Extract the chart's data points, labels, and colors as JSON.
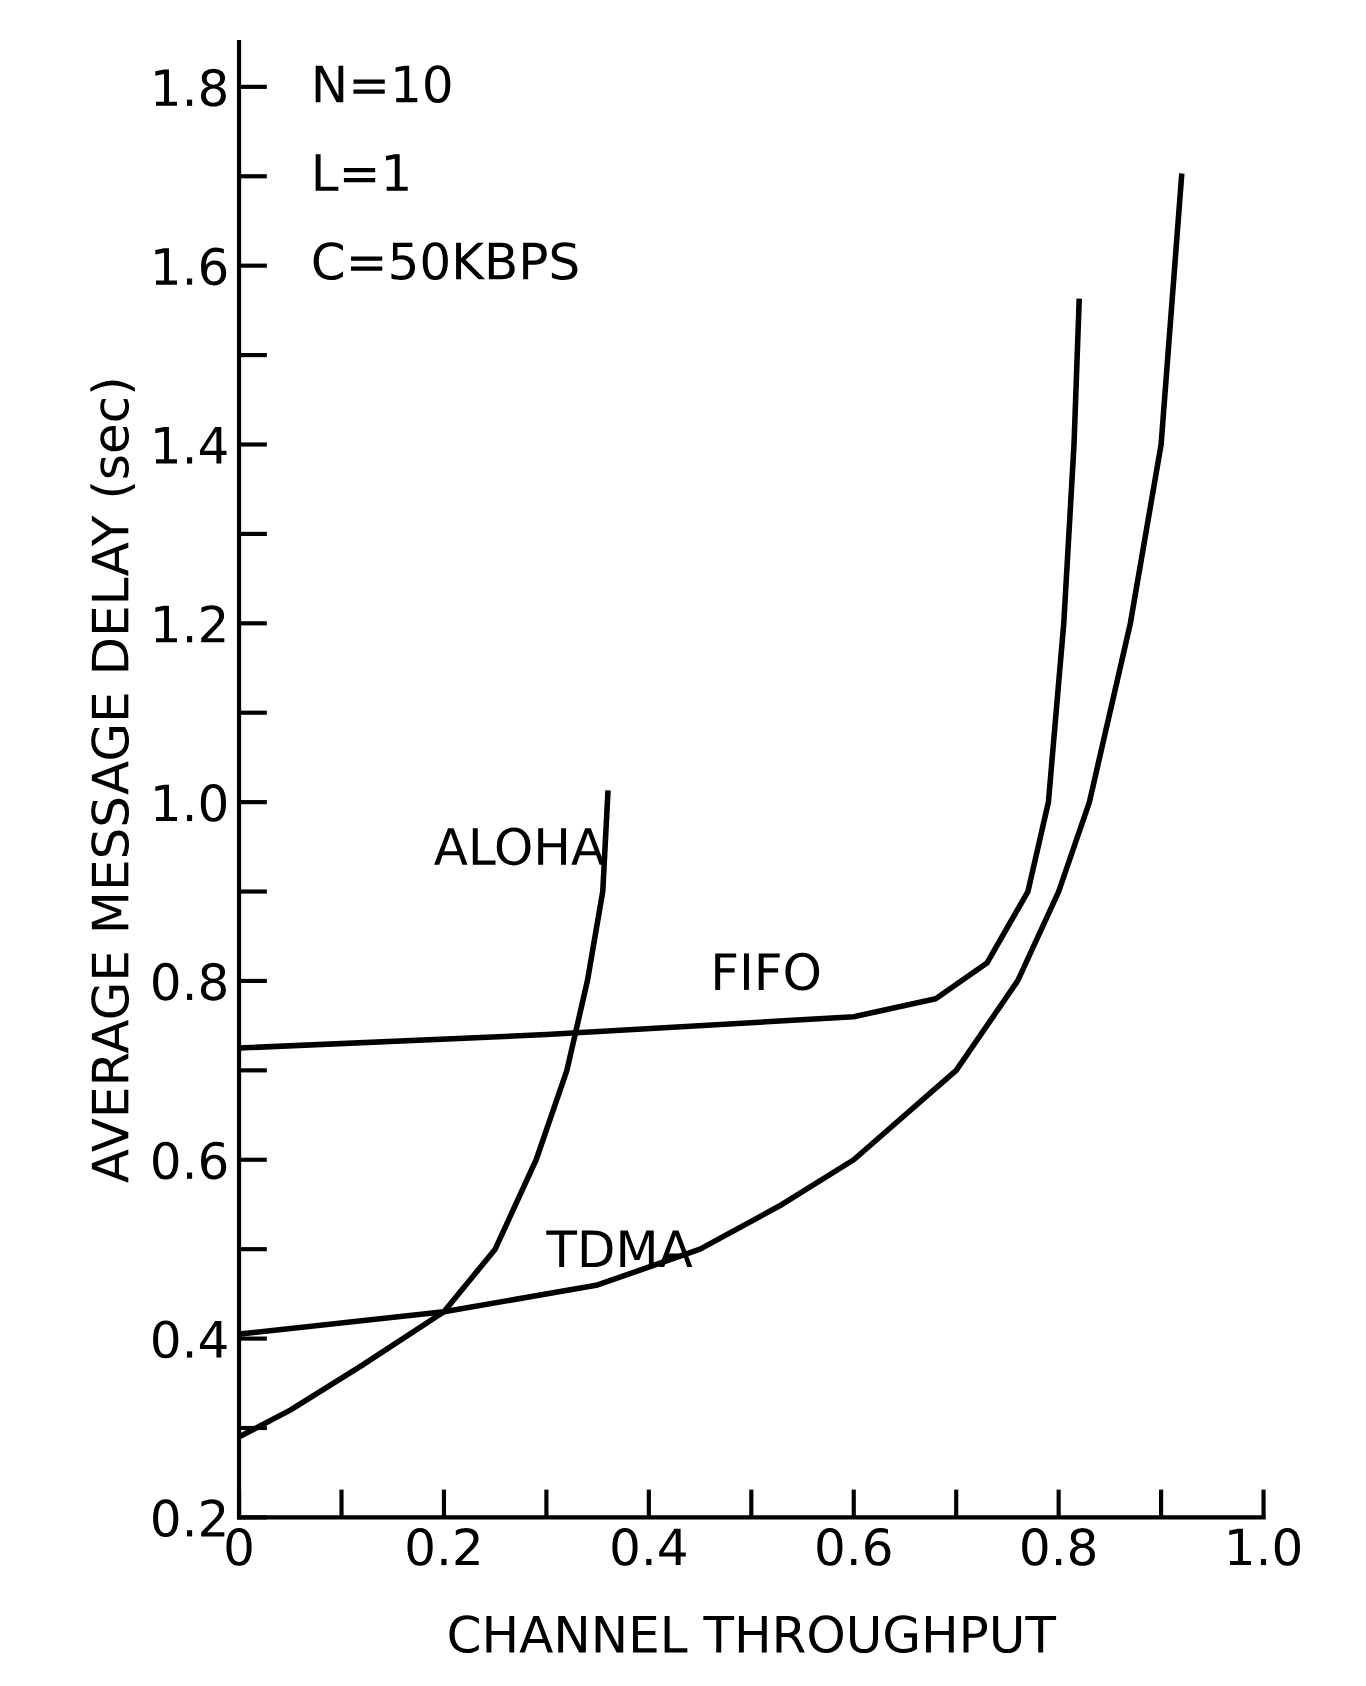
{
  "chart_data": {
    "type": "line",
    "xlabel": "CHANNEL THROUGHPUT",
    "ylabel": "AVERAGE MESSAGE DELAY (sec)",
    "annotations": [
      "N=10",
      "L=1",
      "C=50KBPS"
    ],
    "xlim": [
      0,
      1.0
    ],
    "ylim": [
      0.2,
      1.85
    ],
    "xticks": [
      {
        "value": 0,
        "label": "0"
      },
      {
        "value": 0.1,
        "label": null
      },
      0.2,
      {
        "value": 0.3,
        "label": null
      },
      0.4,
      {
        "value": 0.5,
        "label": null
      },
      0.6,
      {
        "value": 0.7,
        "label": null
      },
      0.8,
      {
        "value": 0.9,
        "label": null
      },
      {
        "value": 1.0,
        "label": "1.0"
      }
    ],
    "yticks": [
      0.2,
      {
        "value": 0.3,
        "label": null
      },
      0.4,
      {
        "value": 0.5,
        "label": null
      },
      0.6,
      {
        "value": 0.7,
        "label": null
      },
      0.8,
      {
        "value": 0.9,
        "label": null
      },
      {
        "value": 1.0,
        "label": "1.0"
      },
      {
        "value": 1.1,
        "label": null
      },
      1.2,
      {
        "value": 1.3,
        "label": null
      },
      1.4,
      {
        "value": 1.5,
        "label": null
      },
      1.6,
      {
        "value": 1.7,
        "label": null
      },
      1.8
    ],
    "grid": false,
    "legend": false,
    "marker": "none",
    "line_style": "solid",
    "series": [
      {
        "name": "ALOHA",
        "color": "#000000",
        "x": [
          0,
          0.05,
          0.12,
          0.2,
          0.25,
          0.29,
          0.32,
          0.34,
          0.355,
          0.36
        ],
        "values": [
          0.29,
          0.32,
          0.37,
          0.43,
          0.5,
          0.6,
          0.7,
          0.8,
          0.9,
          1.01
        ]
      },
      {
        "name": "FIFO",
        "color": "#000000",
        "x": [
          0,
          0.3,
          0.6,
          0.68,
          0.73,
          0.77,
          0.79,
          0.805,
          0.815,
          0.82
        ],
        "values": [
          0.725,
          0.74,
          0.76,
          0.78,
          0.82,
          0.9,
          1.0,
          1.2,
          1.4,
          1.56
        ]
      },
      {
        "name": "TDMA",
        "color": "#000000",
        "x": [
          0,
          0.2,
          0.35,
          0.45,
          0.53,
          0.6,
          0.7,
          0.76,
          0.8,
          0.83,
          0.87,
          0.9,
          0.92
        ],
        "values": [
          0.405,
          0.43,
          0.46,
          0.5,
          0.55,
          0.6,
          0.7,
          0.8,
          0.9,
          1.0,
          1.2,
          1.4,
          1.7
        ]
      }
    ]
  }
}
